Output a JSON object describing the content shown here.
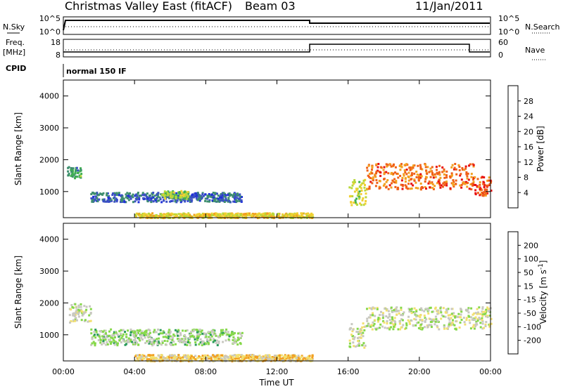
{
  "header": {
    "title": "Christmas Valley East (fitACF)",
    "beam": "Beam 03",
    "date": "11/Jan/2011"
  },
  "top_panels": {
    "nsky_label": "N.Sky",
    "nsky_ticks": [
      "10^5",
      "10^0"
    ],
    "nsearch_label": "N.Search",
    "nsearch_ticks": [
      "10^5",
      "10^0"
    ],
    "freq_label_1": "Freq.",
    "freq_label_2": "[MHz]",
    "freq_ticks": [
      "18",
      "8"
    ],
    "nave_label": "Nave",
    "nave_ticks": [
      "60",
      "0"
    ],
    "cpid_label": "CPID",
    "cpid_value": "normal 150 IF"
  },
  "colors": {
    "power": [
      "#1f2fd9",
      "#3b50c4",
      "#3f8f6f",
      "#40b050",
      "#b8d83a",
      "#f0d030",
      "#f2a020",
      "#f06018",
      "#e81010"
    ],
    "velocity": [
      "#2a2ad0",
      "#2a62d8",
      "#2a9a5a",
      "#86d84a",
      "#c8c8c0",
      "#f2e070",
      "#f2a020",
      "#f06010",
      "#e81010"
    ]
  },
  "chart_data": [
    {
      "type": "heatmap",
      "panel": "power",
      "ylabel": "Slant Range [km]",
      "yticks": [
        "1000",
        "2000",
        "3000",
        "4000"
      ],
      "ylim": [
        180,
        4500
      ],
      "xlim": [
        "00:00",
        "24:00"
      ],
      "colorbar_label": "Power [dB]",
      "colorbar_ticks": [
        "4",
        "8",
        "12",
        "16",
        "20",
        "24",
        "28"
      ],
      "colorbar_range": [
        0,
        30
      ],
      "scatter_bands": [
        {
          "t_start": 0.2,
          "t_end": 1.0,
          "r_low": 1450,
          "r_high": 1800,
          "value": 10
        },
        {
          "t_start": 1.5,
          "t_end": 10.0,
          "r_low": 700,
          "r_high": 1000,
          "value": 6
        },
        {
          "t_start": 5.5,
          "t_end": 7.0,
          "r_low": 800,
          "r_high": 1050,
          "value": 14
        },
        {
          "t_start": 4.0,
          "t_end": 14.0,
          "r_low": 200,
          "r_high": 350,
          "value": 18
        },
        {
          "t_start": 16.0,
          "t_end": 17.0,
          "r_low": 600,
          "r_high": 1400,
          "value": 16
        },
        {
          "t_start": 17.0,
          "t_end": 23.0,
          "r_low": 1100,
          "r_high": 1900,
          "value": 24
        },
        {
          "t_start": 23.0,
          "t_end": 24.0,
          "r_low": 900,
          "r_high": 1500,
          "value": 26
        }
      ]
    },
    {
      "type": "heatmap",
      "panel": "velocity",
      "ylabel": "Slant Range [km]",
      "yticks": [
        "1000",
        "2000",
        "3000",
        "4000"
      ],
      "ylim": [
        180,
        4500
      ],
      "xlabel": "Time UT",
      "xticks": [
        "00:00",
        "04:00",
        "08:00",
        "12:00",
        "16:00",
        "20:00",
        "00:00"
      ],
      "colorbar_label": "Velocity [m s^-1]",
      "colorbar_ticks": [
        "200",
        "100",
        "50",
        "15",
        "-15",
        "-50",
        "-100",
        "-200"
      ],
      "colorbar_range": [
        -250,
        250
      ],
      "scatter_bands": [
        {
          "t_start": 0.3,
          "t_end": 1.5,
          "r_low": 1400,
          "r_high": 2000,
          "value": 0
        },
        {
          "t_start": 1.5,
          "t_end": 10.0,
          "r_low": 700,
          "r_high": 1200,
          "value": 40
        },
        {
          "t_start": 4.0,
          "t_end": 14.0,
          "r_low": 200,
          "r_high": 400,
          "value": -60
        },
        {
          "t_start": 16.0,
          "t_end": 17.0,
          "r_low": 600,
          "r_high": 1400,
          "value": 0
        },
        {
          "t_start": 17.0,
          "t_end": 24.0,
          "r_low": 1200,
          "r_high": 1900,
          "value": 0
        }
      ]
    }
  ],
  "x_axis": {
    "label": "Time UT",
    "ticks": [
      "00:00",
      "04:00",
      "08:00",
      "12:00",
      "16:00",
      "20:00",
      "00:00"
    ]
  }
}
